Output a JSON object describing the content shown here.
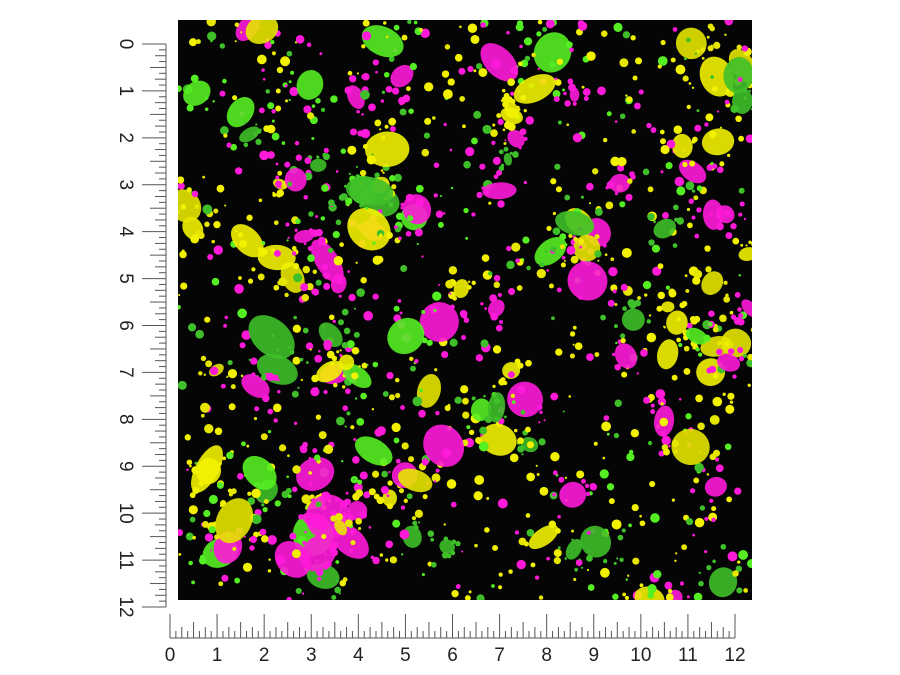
{
  "vertical_ruler": {
    "labels": [
      "0",
      "1",
      "2",
      "3",
      "4",
      "5",
      "6",
      "7",
      "8",
      "9",
      "10",
      "11",
      "12"
    ]
  },
  "horizontal_ruler": {
    "labels": [
      "0",
      "1",
      "2",
      "3",
      "4",
      "5",
      "6",
      "7",
      "8",
      "9",
      "10",
      "11",
      "12"
    ]
  }
}
